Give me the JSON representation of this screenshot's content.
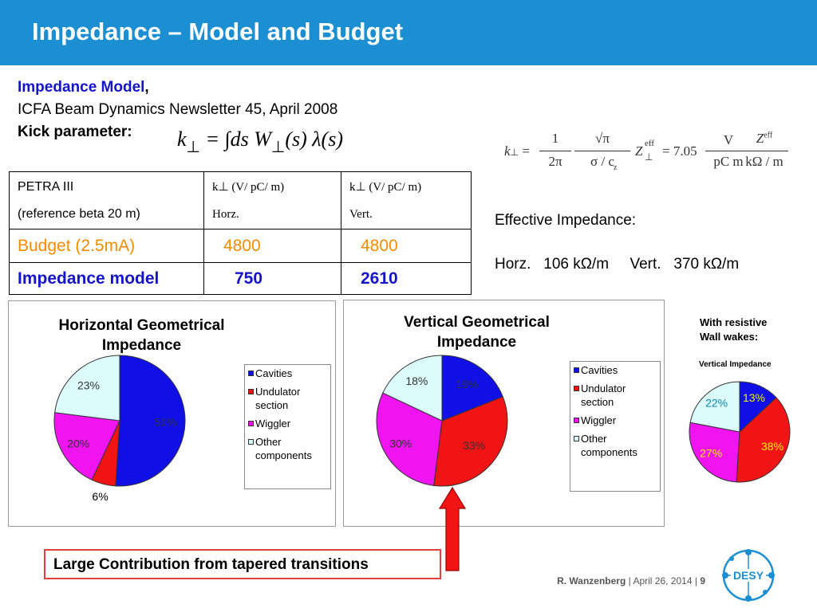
{
  "slide": {
    "title": "Impedance – Model and Budget"
  },
  "intro": {
    "model_label": "Impedance  Model",
    "model_comma": ",",
    "newsletter": "ICFA Beam Dynamics Newsletter 45, April 2008",
    "kick_label": "Kick parameter:"
  },
  "formulas": {
    "kick_lhs": "k",
    "kick_rhs": "= ∫ds  W",
    "kick_tail": "(s) λ(s)",
    "eff_k": "k",
    "eff_frac1_num": "1",
    "eff_frac1_den": "2π",
    "eff_frac2_num": "√π",
    "eff_frac2_den": "σ  / c",
    "eff_sigma_sub": "z",
    "eff_z": "Z",
    "eff_sup": "eff",
    "eff_coef": "= 7.05",
    "eff_unit1_num": "V",
    "eff_unit1_den": "pC m",
    "eff_unit2_num": "Z",
    "eff_unit2_den": "kΩ / m"
  },
  "table": {
    "header": {
      "c1_line1": "PETRA III",
      "c1_line2": "(reference beta 20 m)",
      "c2_line1": "k⊥ (V/ pC/ m)",
      "c2_line2": "Horz.",
      "c3_line1": "k⊥ (V/ pC/ m)",
      "c3_line2": "Vert."
    },
    "budget": {
      "label": "Budget  (2.5mA)",
      "horz": "4800",
      "vert": "4800"
    },
    "model": {
      "label": "Impedance model",
      "horz": "750",
      "vert": "2610"
    }
  },
  "effective": {
    "label": "Effective Impedance:",
    "horz_label": "Horz.",
    "horz_value": "106 kΩ/m",
    "vert_label": "Vert.",
    "vert_value": "370 kΩ/m"
  },
  "colors": {
    "header_bg": "#1b8fd2",
    "cavities": "#0f0fe6",
    "undulator": "#f01414",
    "wiggler": "#f014f0",
    "other": "#dcfcfc"
  },
  "legend": {
    "cavities": "Cavities",
    "undulator_1": "Undulator",
    "undulator_2": "section",
    "wiggler": "Wiggler",
    "other_1": "Other",
    "other_2": "components"
  },
  "chart_data": [
    {
      "type": "pie",
      "title": "Horizontal Geometrical Impedance",
      "categories": [
        "Cavities",
        "Undulator section",
        "Wiggler",
        "Other components"
      ],
      "values": [
        51,
        6,
        20,
        23
      ],
      "labels": [
        "51%",
        "6%",
        "20%",
        "23%"
      ]
    },
    {
      "type": "pie",
      "title": "Vertical  Geometrical Impedance",
      "categories": [
        "Cavities",
        "Undulator section",
        "Wiggler",
        "Other components"
      ],
      "values": [
        19,
        33,
        30,
        18
      ],
      "labels": [
        "19%",
        "33%",
        "30%",
        "18%"
      ]
    },
    {
      "type": "pie",
      "title": "Vertical  Impedance",
      "categories": [
        "Cavities",
        "Undulator section",
        "Wiggler",
        "Other components"
      ],
      "values": [
        13,
        38,
        27,
        22
      ],
      "labels": [
        "13%",
        "38%",
        "27%",
        "22%"
      ]
    }
  ],
  "chart_titles": {
    "h_line1": "Horizontal Geometrical",
    "h_line2": "Impedance",
    "v_line1": "Vertical  Geometrical",
    "v_line2": "Impedance",
    "resistive_note_1": "With resistive",
    "resistive_note_2": "Wall wakes:",
    "small_title": "Vertical  Impedance"
  },
  "callout": "Large Contribution from tapered transitions",
  "footer": {
    "author": "R.  Wanzenberg",
    "sep1": "|",
    "date": "April  26,  2014",
    "sep2": "|",
    "page": "9",
    "logo_text": "DESY"
  }
}
